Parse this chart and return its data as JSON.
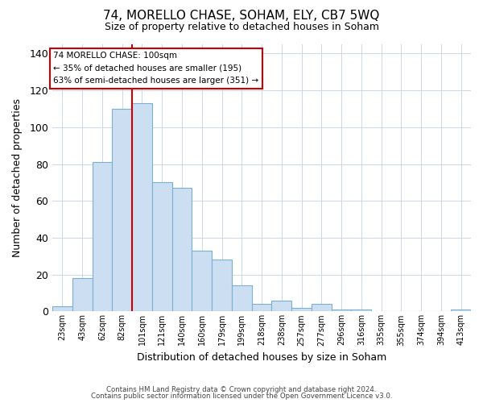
{
  "title": "74, MORELLO CHASE, SOHAM, ELY, CB7 5WQ",
  "subtitle": "Size of property relative to detached houses in Soham",
  "xlabel": "Distribution of detached houses by size in Soham",
  "ylabel": "Number of detached properties",
  "bar_labels": [
    "23sqm",
    "43sqm",
    "62sqm",
    "82sqm",
    "101sqm",
    "121sqm",
    "140sqm",
    "160sqm",
    "179sqm",
    "199sqm",
    "218sqm",
    "238sqm",
    "257sqm",
    "277sqm",
    "296sqm",
    "316sqm",
    "335sqm",
    "355sqm",
    "374sqm",
    "394sqm",
    "413sqm"
  ],
  "bar_values": [
    3,
    18,
    81,
    110,
    113,
    70,
    67,
    33,
    28,
    14,
    4,
    6,
    2,
    4,
    1,
    1,
    0,
    0,
    0,
    0,
    1
  ],
  "bar_color": "#ccdff2",
  "bar_edge_color": "#7aafd4",
  "vline_color": "#cc0000",
  "vline_pos": 4,
  "annotation_title": "74 MORELLO CHASE: 100sqm",
  "annotation_line1": "← 35% of detached houses are smaller (195)",
  "annotation_line2": "63% of semi-detached houses are larger (351) →",
  "annotation_box_edge": "#cc0000",
  "ylim": [
    0,
    145
  ],
  "yticks": [
    0,
    20,
    40,
    60,
    80,
    100,
    120,
    140
  ],
  "footer1": "Contains HM Land Registry data © Crown copyright and database right 2024.",
  "footer2": "Contains public sector information licensed under the Open Government Licence v3.0.",
  "background_color": "#ffffff",
  "grid_color": "#ccd8e8"
}
